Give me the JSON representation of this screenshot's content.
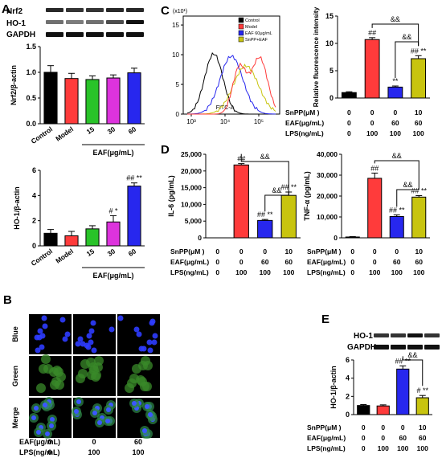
{
  "panel_labels": {
    "a": "A",
    "b": "B",
    "c": "C",
    "d": "D",
    "e": "E"
  },
  "colors": {
    "black": "#000000",
    "red": "#ff3b3b",
    "green": "#29c329",
    "magenta": "#dd33dd",
    "blue": "#2727ee",
    "olive": "#c8c40f",
    "gray": "#888888"
  },
  "panel_a": {
    "blot_labels": [
      "Nrf2",
      "HO-1",
      "GAPDH"
    ],
    "group_label": "EAF(μg/mL)",
    "chart_data": [
      {
        "type": "bar",
        "ylabel": "Nrf2/β-actin",
        "ylim": [
          0,
          1.5
        ],
        "yticks": [
          "0.0",
          "0.5",
          "1.0",
          "1.5"
        ],
        "categories": [
          "Control",
          "Model",
          "15",
          "30",
          "60"
        ],
        "values": [
          1.0,
          0.88,
          0.86,
          0.89,
          0.99
        ],
        "errors": [
          0.13,
          0.1,
          0.07,
          0.06,
          0.09
        ],
        "annotations": [
          "",
          "",
          "",
          "",
          ""
        ]
      },
      {
        "type": "bar",
        "ylabel": "HO-1/β-actin",
        "ylim": [
          0,
          6
        ],
        "yticks": [
          "0",
          "2",
          "4",
          "6"
        ],
        "categories": [
          "Control",
          "Model",
          "15",
          "30",
          "60"
        ],
        "values": [
          1.0,
          0.8,
          1.35,
          1.9,
          4.75
        ],
        "errors": [
          0.3,
          0.35,
          0.25,
          0.5,
          0.25
        ],
        "annotations": [
          "",
          "",
          "",
          "# *",
          "## **"
        ]
      }
    ]
  },
  "panel_b": {
    "rows": [
      "Blue",
      "Green",
      "Merge"
    ],
    "eaf_label": "EAF(μg/mL)",
    "lps_label": "LPS(ng/mL)",
    "eaf_values": [
      "0",
      "0",
      "60"
    ],
    "lps_values": [
      "0",
      "100",
      "100"
    ]
  },
  "panel_c_flow": {
    "xlabel": "FITC-A",
    "y_exponent_label": "(x10¹)",
    "yticks": [
      "0",
      "5",
      "10",
      "15"
    ],
    "xticks": [
      "10³",
      "10⁴",
      "10⁵"
    ],
    "legend": [
      {
        "label": "Control",
        "color": "#000000"
      },
      {
        "label": "Model",
        "color": "#ff3b3b"
      },
      {
        "label": "EAF 60μg/mL",
        "color": "#2727ee"
      },
      {
        "label": "SnPP+EAF",
        "color": "#c8c40f"
      }
    ]
  },
  "panel_c_bar": {
    "chart_data": {
      "type": "bar",
      "ylabel": "Relative fluorescence intensity",
      "ylim": [
        0,
        15
      ],
      "yticks": [
        "0",
        "5",
        "10",
        "15"
      ],
      "categories": [
        "1",
        "2",
        "3",
        "4"
      ],
      "values": [
        1.0,
        10.7,
        2.0,
        7.2
      ],
      "errors": [
        0.15,
        0.35,
        0.2,
        0.55
      ],
      "annotations": [
        "",
        "##",
        "**",
        "## **"
      ],
      "bracket_labels": [
        "&&",
        "&&"
      ]
    },
    "treatments": [
      {
        "label": "SnPP(μM )",
        "values": [
          "0",
          "0",
          "0",
          "10"
        ]
      },
      {
        "label": "EAF(μg/mL)",
        "values": [
          "0",
          "0",
          "60",
          "60"
        ]
      },
      {
        "label": "LPS(ng/mL)",
        "values": [
          "0",
          "100",
          "100",
          "100"
        ]
      }
    ]
  },
  "panel_d": {
    "chart_data": [
      {
        "type": "bar",
        "ylabel": "IL-6 (pg/mL)",
        "ylim": [
          0,
          25000
        ],
        "yticks": [
          "0",
          "5,000",
          "10,000",
          "15,000",
          "20,000",
          "25,000"
        ],
        "categories": [
          "1",
          "2",
          "3",
          "4"
        ],
        "values": [
          0,
          21800,
          5200,
          12700
        ],
        "errors": [
          0,
          400,
          300,
          1000
        ],
        "annotations": [
          "",
          "##",
          "## **",
          "## **"
        ],
        "bracket_labels": [
          "&&",
          "&&"
        ]
      },
      {
        "type": "bar",
        "ylabel": "TNF-α (pg/mL)",
        "ylim": [
          0,
          40000
        ],
        "yticks": [
          "0",
          "10,000",
          "20,000",
          "30,000",
          "40,000"
        ],
        "categories": [
          "1",
          "2",
          "3",
          "4"
        ],
        "values": [
          400,
          28500,
          10200,
          19500
        ],
        "errors": [
          200,
          2500,
          800,
          700
        ],
        "annotations": [
          "",
          "##",
          "## **",
          "## **"
        ],
        "bracket_labels": [
          "&&",
          "&&"
        ]
      }
    ],
    "treatments": [
      {
        "label": "SnPP(μM )",
        "values": [
          "0",
          "0",
          "0",
          "10"
        ]
      },
      {
        "label": "EAF(μg/mL)",
        "values": [
          "0",
          "0",
          "60",
          "60"
        ]
      },
      {
        "label": "LPS(ng/mL)",
        "values": [
          "0",
          "100",
          "100",
          "100"
        ]
      }
    ]
  },
  "panel_e": {
    "blot_labels": [
      "HO-1",
      "GAPDH"
    ],
    "chart_data": {
      "type": "bar",
      "ylabel": "HO-1/β-actin",
      "ylim": [
        0,
        6
      ],
      "yticks": [
        "0",
        "2",
        "4",
        "6"
      ],
      "categories": [
        "1",
        "2",
        "3",
        "4"
      ],
      "values": [
        1.0,
        0.95,
        5.0,
        1.85
      ],
      "errors": [
        0.1,
        0.12,
        0.35,
        0.25
      ],
      "annotations": [
        "",
        "",
        "## **",
        "# **"
      ],
      "bracket_labels": [
        "&&"
      ]
    },
    "treatments": [
      {
        "label": "SnPP(μM )",
        "values": [
          "0",
          "0",
          "0",
          "10"
        ]
      },
      {
        "label": "EAF(μg/mL)",
        "values": [
          "0",
          "0",
          "60",
          "60"
        ]
      },
      {
        "label": "LPS(ng/mL)",
        "values": [
          "0",
          "100",
          "100",
          "100"
        ]
      }
    ]
  }
}
